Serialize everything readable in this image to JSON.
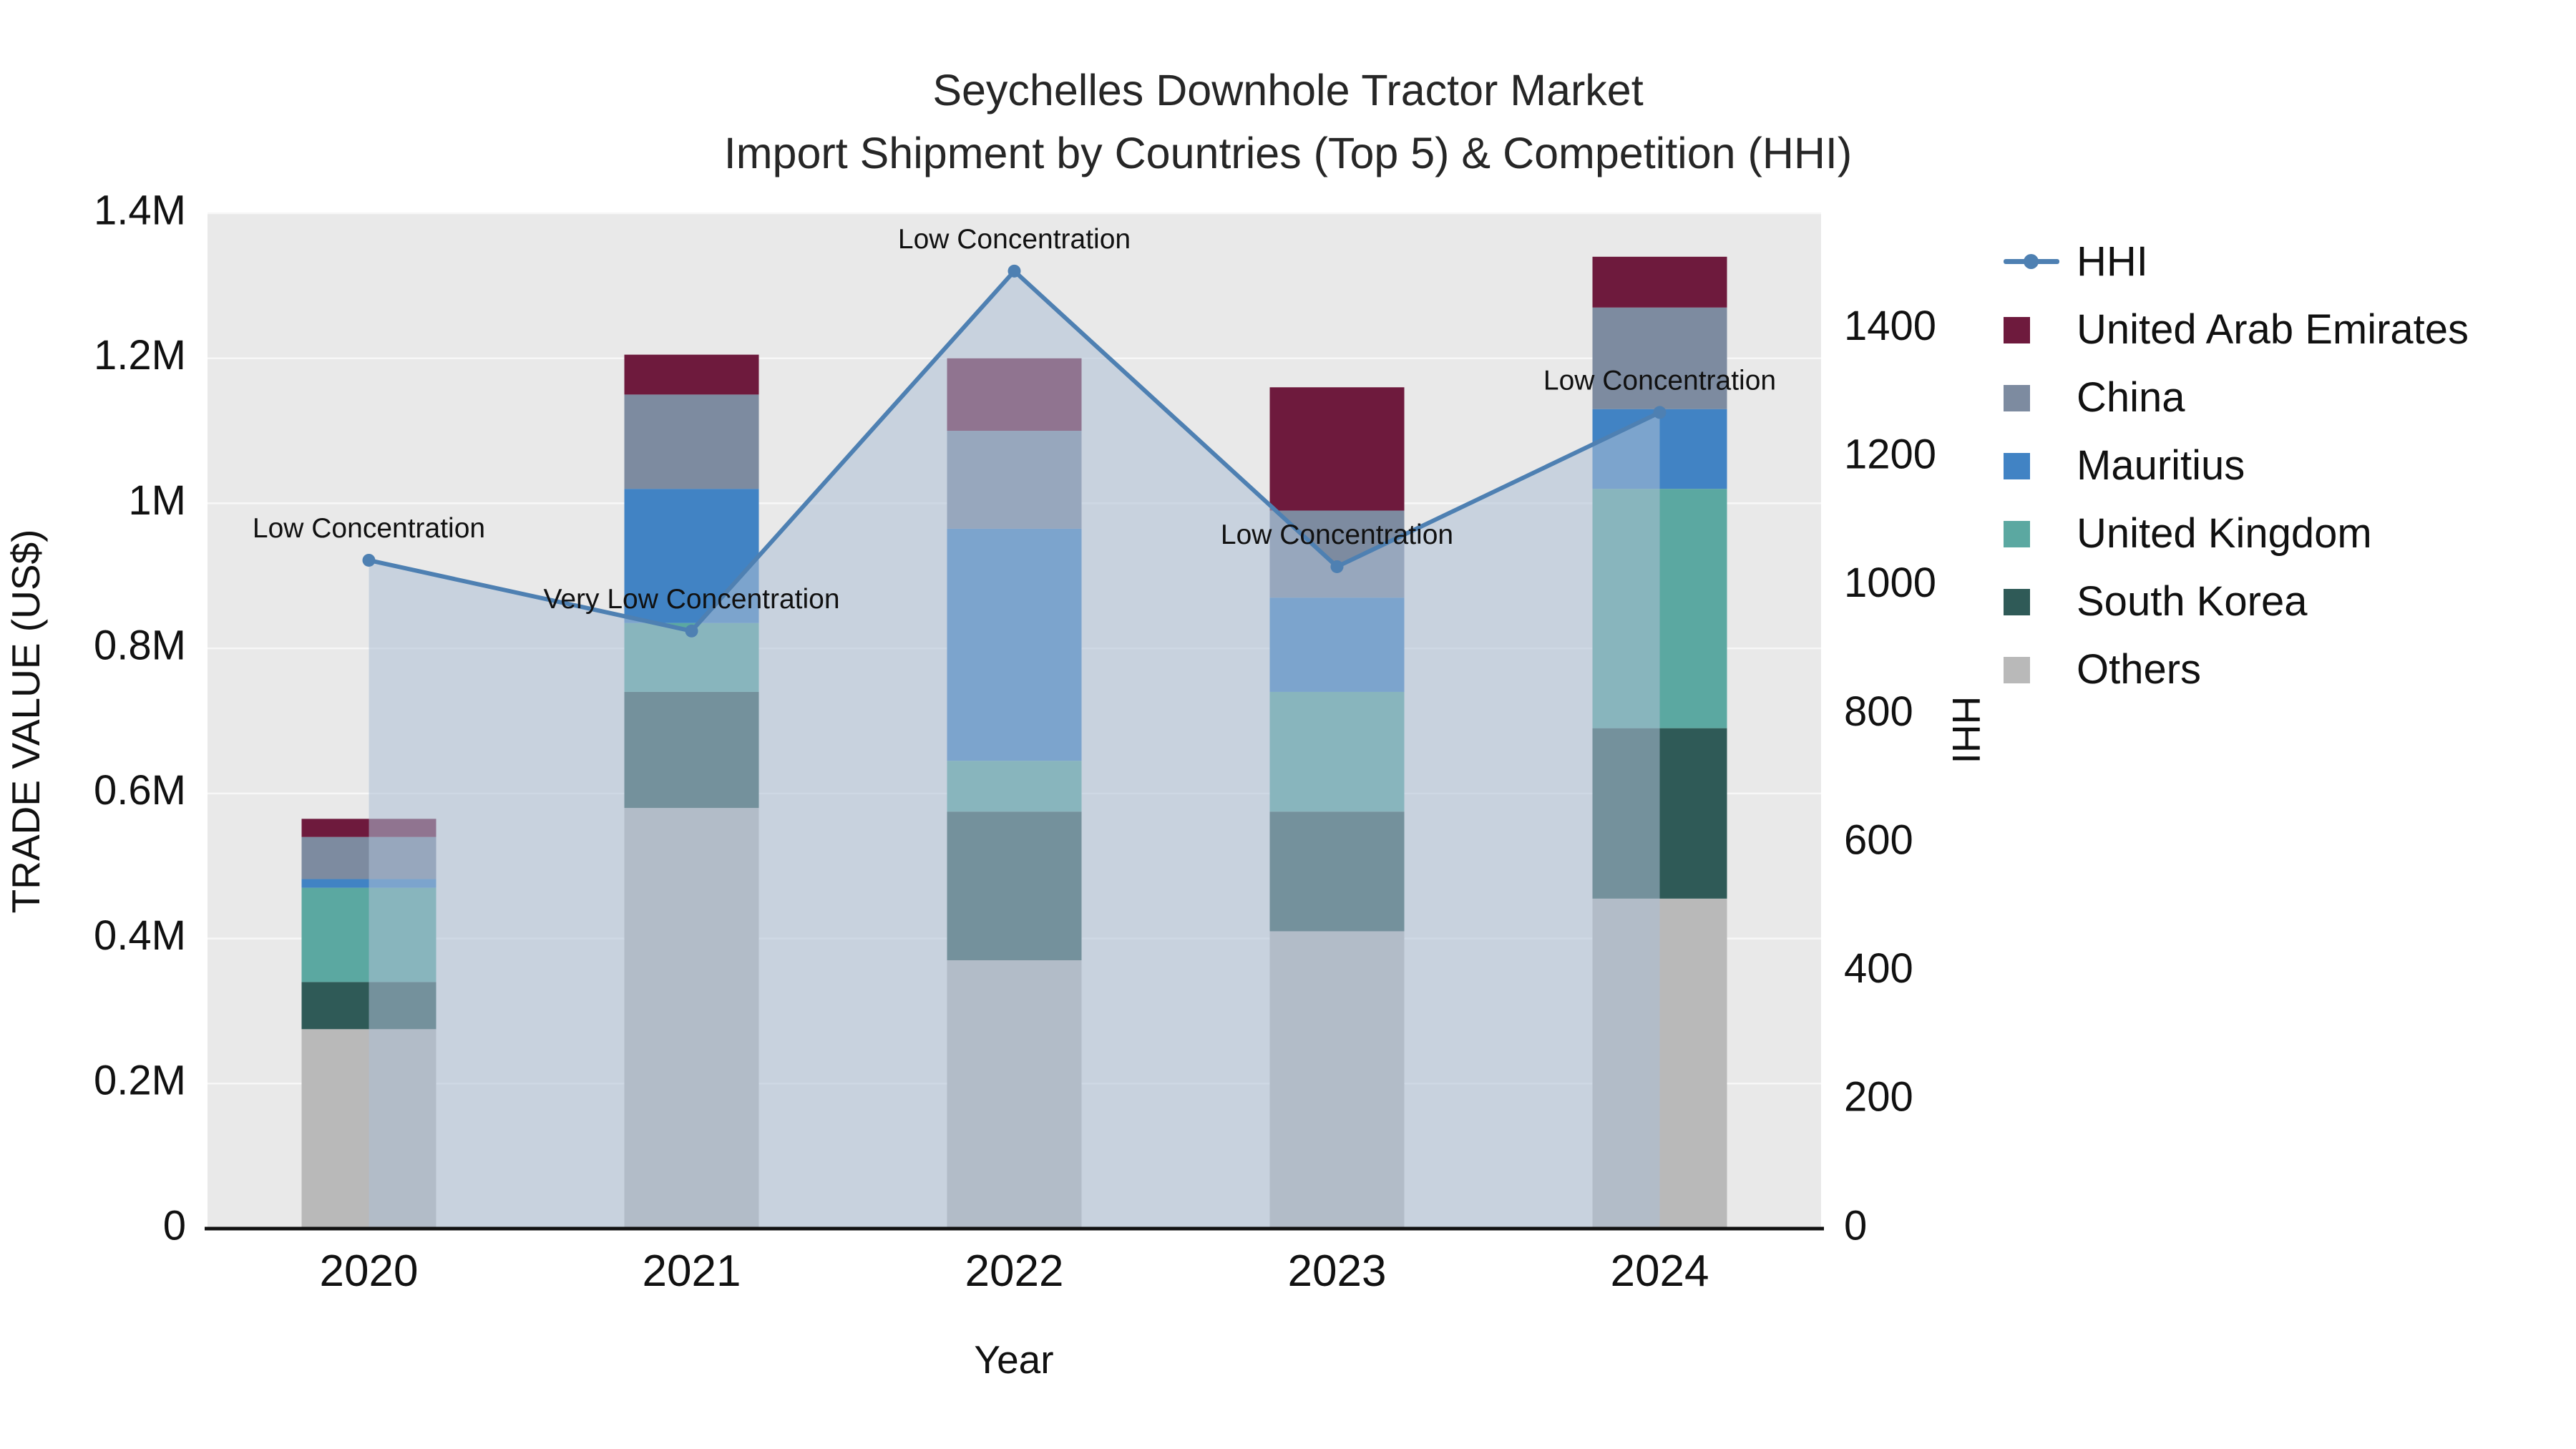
{
  "title": {
    "line1": "Seychelles Downhole Tractor Market",
    "line2": "Import Shipment by Countries (Top 5) & Competition (HHI)"
  },
  "axes": {
    "x_label": "Year",
    "y_left_label": "TRADE VALUE (US$)",
    "y_right_label": "HHI"
  },
  "colors": {
    "plot_bg": "#e9e9e9",
    "grid": "#f7f7f7",
    "axis_line": "#111111"
  },
  "chart_data": {
    "type": "bar",
    "subtype": "stacked-bars-with-line-overlay",
    "categories": [
      "2020",
      "2021",
      "2022",
      "2023",
      "2024"
    ],
    "bar_series": [
      {
        "name": "Others",
        "color": "#b9b9b9",
        "values": [
          275000,
          580000,
          370000,
          410000,
          455000
        ]
      },
      {
        "name": "South Korea",
        "color": "#2f5a57",
        "values": [
          65000,
          160000,
          205000,
          165000,
          235000
        ]
      },
      {
        "name": "United Kingdom",
        "color": "#5ba8a1",
        "values": [
          130000,
          95000,
          70000,
          165000,
          330000
        ]
      },
      {
        "name": "Mauritius",
        "color": "#4183c4",
        "values": [
          12000,
          185000,
          320000,
          130000,
          110000
        ]
      },
      {
        "name": "China",
        "color": "#7d8ba0",
        "values": [
          58000,
          130000,
          135000,
          120000,
          140000
        ]
      },
      {
        "name": "United Arab Emirates",
        "color": "#6e1a3d",
        "values": [
          25000,
          55000,
          100000,
          170000,
          70000
        ]
      }
    ],
    "line_series": {
      "name": "HHI",
      "axis": "right",
      "color": "#4e80b2",
      "area_fill": "rgba(173,192,214,0.55)",
      "values": [
        1040,
        930,
        1490,
        1030,
        1270
      ]
    },
    "annotations": [
      {
        "x": "2020",
        "text": "Low Concentration"
      },
      {
        "x": "2021",
        "text": "Very Low Concentration"
      },
      {
        "x": "2022",
        "text": "Low Concentration"
      },
      {
        "x": "2023",
        "text": "Low Concentration"
      },
      {
        "x": "2024",
        "text": "Low Concentration"
      }
    ],
    "left_axis": {
      "max": 1400000,
      "ticks": [
        {
          "value": 0,
          "label": "0"
        },
        {
          "value": 200000,
          "label": "0.2M"
        },
        {
          "value": 400000,
          "label": "0.4M"
        },
        {
          "value": 600000,
          "label": "0.6M"
        },
        {
          "value": 800000,
          "label": "0.8M"
        },
        {
          "value": 1000000,
          "label": "1M"
        },
        {
          "value": 1200000,
          "label": "1.2M"
        },
        {
          "value": 1400000,
          "label": "1.4M"
        }
      ]
    },
    "right_axis": {
      "max": 1580,
      "ticks": [
        {
          "value": 0,
          "label": "0"
        },
        {
          "value": 200,
          "label": "200"
        },
        {
          "value": 400,
          "label": "400"
        },
        {
          "value": 600,
          "label": "600"
        },
        {
          "value": 800,
          "label": "800"
        },
        {
          "value": 1000,
          "label": "1000"
        },
        {
          "value": 1200,
          "label": "1200"
        },
        {
          "value": 1400,
          "label": "1400"
        }
      ]
    },
    "legend": [
      {
        "label": "HHI",
        "type": "line",
        "color": "#4e80b2"
      },
      {
        "label": "United Arab Emirates",
        "type": "square",
        "color": "#6e1a3d"
      },
      {
        "label": "China",
        "type": "square",
        "color": "#7d8ba0"
      },
      {
        "label": "Mauritius",
        "type": "square",
        "color": "#4183c4"
      },
      {
        "label": "United Kingdom",
        "type": "square",
        "color": "#5ba8a1"
      },
      {
        "label": "South Korea",
        "type": "square",
        "color": "#2f5a57"
      },
      {
        "label": "Others",
        "type": "square",
        "color": "#b9b9b9"
      }
    ]
  }
}
